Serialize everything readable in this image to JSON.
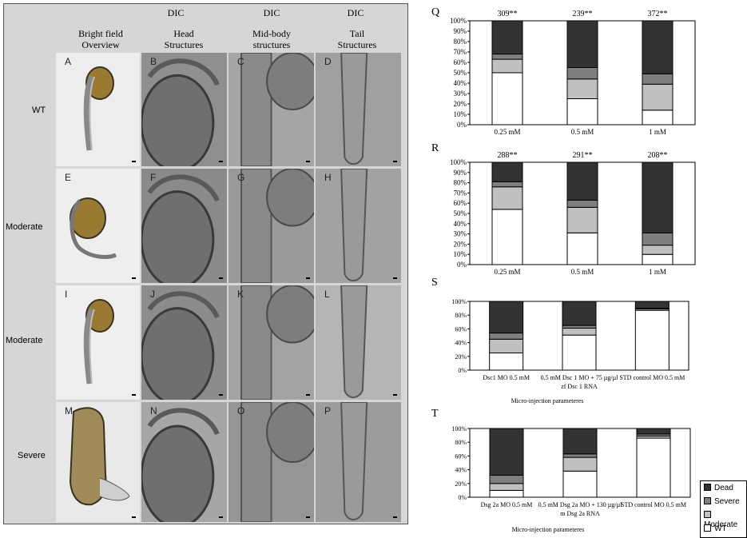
{
  "headers": {
    "dic1": "DIC",
    "dic2": "DIC",
    "dic3": "DIC",
    "col1_line1": "Bright field",
    "col1_line2": "Overview",
    "col2_line1": "Head",
    "col2_line2": "Structures",
    "col3_line1": "Mid-body",
    "col3_line2": "structures",
    "col4_line1": "Tail",
    "col4_line2": "Structures"
  },
  "rows": [
    {
      "label": "WT",
      "panels": [
        "A",
        "B",
        "C",
        "D"
      ]
    },
    {
      "label": "Moderate",
      "panels": [
        "E",
        "F",
        "G",
        "H"
      ]
    },
    {
      "label": "Moderate",
      "panels": [
        "I",
        "J",
        "K",
        "L"
      ]
    },
    {
      "label": "Severe",
      "panels": [
        "M",
        "N",
        "O",
        "P"
      ]
    }
  ],
  "colors": {
    "dead": "#333333",
    "severe": "#7f7f7f",
    "moderate": "#c0c0c0",
    "wt": "#ffffff"
  },
  "legend": [
    "Dead",
    "Severe",
    "Moderate",
    "WT"
  ],
  "chart_data": [
    {
      "panel": "Q",
      "type": "bar",
      "stacked": true,
      "ylim": [
        0,
        100
      ],
      "yticks_pct_step": 10,
      "categories": [
        "0.25 mM",
        "0.5 mM",
        "1 mM"
      ],
      "top_labels": [
        "309**",
        "239**",
        "372**"
      ],
      "series": [
        {
          "name": "WT",
          "values": [
            50,
            25,
            14
          ]
        },
        {
          "name": "Moderate",
          "values": [
            13,
            19,
            25
          ]
        },
        {
          "name": "Severe",
          "values": [
            5,
            11,
            10
          ]
        },
        {
          "name": "Dead",
          "values": [
            32,
            45,
            51
          ]
        }
      ]
    },
    {
      "panel": "R",
      "type": "bar",
      "stacked": true,
      "ylim": [
        0,
        100
      ],
      "yticks_pct_step": 10,
      "categories": [
        "0.25 mM",
        "0.5 mM",
        "1 mM"
      ],
      "top_labels": [
        "288**",
        "291**",
        "208**"
      ],
      "series": [
        {
          "name": "WT",
          "values": [
            54,
            31,
            10
          ]
        },
        {
          "name": "Moderate",
          "values": [
            22,
            25,
            9
          ]
        },
        {
          "name": "Severe",
          "values": [
            5,
            7,
            12
          ]
        },
        {
          "name": "Dead",
          "values": [
            19,
            37,
            69
          ]
        }
      ]
    },
    {
      "panel": "S",
      "type": "bar",
      "stacked": true,
      "ylim": [
        0,
        100
      ],
      "yticks_pct_step": 20,
      "categories": [
        "Dsc1 MO 0.5 mM",
        "0.5 mM Dsc 1 MO + 75 µg/µl zf Dsc 1 RNA",
        "STD control MO 0.5 mM"
      ],
      "xlabel": "Micro-injection parameteres",
      "series": [
        {
          "name": "WT",
          "values": [
            25,
            51,
            87
          ]
        },
        {
          "name": "Moderate",
          "values": [
            20,
            10,
            2
          ]
        },
        {
          "name": "Severe",
          "values": [
            9,
            4,
            1
          ]
        },
        {
          "name": "Dead",
          "values": [
            46,
            35,
            10
          ]
        }
      ]
    },
    {
      "panel": "T",
      "type": "bar",
      "stacked": true,
      "ylim": [
        0,
        100
      ],
      "yticks_pct_step": 20,
      "categories": [
        "Dsg 2a MO 0.5 mM",
        "0.5 mM Dsg 2a MO + 130 µg/µl m Dsg 2a RNA",
        "STD control MO 0.5 mM"
      ],
      "xlabel": "Micro-injection parameteres",
      "series": [
        {
          "name": "WT",
          "values": [
            10,
            38,
            86
          ]
        },
        {
          "name": "Moderate",
          "values": [
            10,
            20,
            3
          ]
        },
        {
          "name": "Severe",
          "values": [
            12,
            5,
            3
          ]
        },
        {
          "name": "Dead",
          "values": [
            68,
            37,
            8
          ]
        }
      ]
    }
  ]
}
